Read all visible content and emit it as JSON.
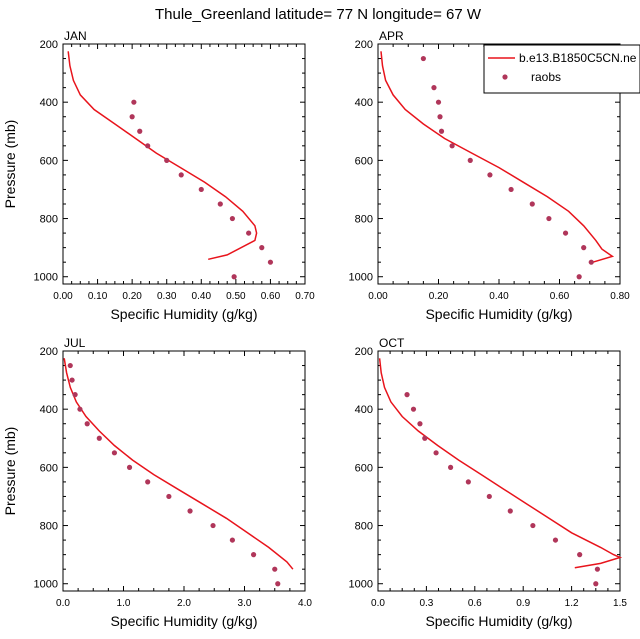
{
  "title": "Thule_Greenland  latitude= 77 N longitude= 67 W",
  "legend": {
    "model_label": "b.e13.B1850C5CN.ne",
    "obs_label": "raobs"
  },
  "colors": {
    "model": "#e8141c",
    "obs": "#b0365a",
    "axis": "#000000"
  },
  "chart_data": [
    {
      "type": "line",
      "panel": "JAN",
      "xlabel": "Specific Humidity (g/kg)",
      "ylabel": "Pressure (mb)",
      "xlim": [
        0,
        0.7
      ],
      "ylim": [
        1025,
        200
      ],
      "xticks": [
        0,
        0.1,
        0.2,
        0.3,
        0.4,
        0.5,
        0.6,
        0.7
      ],
      "xtick_labels": [
        "0.00",
        "0.10",
        "0.20",
        "0.30",
        "0.40",
        "0.50",
        "0.60",
        "0.70"
      ],
      "yticks": [
        200,
        400,
        600,
        800,
        1000
      ],
      "ytick_labels": [
        "200",
        "400",
        "600",
        "800",
        "1000"
      ],
      "model": {
        "p": [
          225,
          275,
          325,
          375,
          425,
          475,
          525,
          575,
          625,
          675,
          725,
          775,
          825,
          850,
          875,
          925,
          940
        ],
        "q": [
          0.015,
          0.02,
          0.03,
          0.05,
          0.09,
          0.15,
          0.21,
          0.27,
          0.34,
          0.41,
          0.47,
          0.52,
          0.555,
          0.56,
          0.555,
          0.475,
          0.42
        ]
      },
      "obs": {
        "p": [
          400,
          450,
          500,
          550,
          600,
          650,
          700,
          750,
          800,
          850,
          900,
          950,
          1000
        ],
        "q": [
          0.205,
          0.2,
          0.222,
          0.245,
          0.3,
          0.342,
          0.4,
          0.455,
          0.49,
          0.537,
          0.575,
          0.6,
          0.495
        ]
      }
    },
    {
      "type": "line",
      "panel": "APR",
      "xlabel": "Specific Humidity (g/kg)",
      "ylabel": "",
      "xlim": [
        0,
        0.8
      ],
      "ylim": [
        1025,
        200
      ],
      "xticks": [
        0,
        0.2,
        0.4,
        0.6,
        0.8
      ],
      "xtick_labels": [
        "0.00",
        "0.20",
        "0.40",
        "0.60",
        "0.80"
      ],
      "yticks": [
        200,
        400,
        600,
        800,
        1000
      ],
      "ytick_labels": [
        "200",
        "400",
        "600",
        "800",
        "1000"
      ],
      "model": {
        "p": [
          225,
          275,
          325,
          375,
          425,
          475,
          525,
          575,
          625,
          675,
          725,
          775,
          825,
          875,
          905,
          930,
          950
        ],
        "q": [
          0.01,
          0.015,
          0.025,
          0.05,
          0.09,
          0.15,
          0.22,
          0.31,
          0.4,
          0.48,
          0.56,
          0.63,
          0.68,
          0.72,
          0.74,
          0.775,
          0.71
        ]
      },
      "obs": {
        "p": [
          250,
          350,
          400,
          450,
          500,
          550,
          600,
          650,
          700,
          750,
          800,
          850,
          900,
          950,
          1000
        ],
        "q": [
          0.15,
          0.185,
          0.2,
          0.205,
          0.21,
          0.245,
          0.305,
          0.37,
          0.44,
          0.51,
          0.565,
          0.62,
          0.68,
          0.705,
          0.665
        ]
      }
    },
    {
      "type": "line",
      "panel": "JUL",
      "xlabel": "Specific Humidity (g/kg)",
      "ylabel": "Pressure (mb)",
      "xlim": [
        0,
        4.0
      ],
      "ylim": [
        1025,
        200
      ],
      "xticks": [
        0,
        1,
        2,
        3,
        4
      ],
      "xtick_labels": [
        "0.0",
        "1.0",
        "2.0",
        "3.0",
        "4.0"
      ],
      "yticks": [
        200,
        400,
        600,
        800,
        1000
      ],
      "ytick_labels": [
        "200",
        "400",
        "600",
        "800",
        "1000"
      ],
      "model": {
        "p": [
          225,
          275,
          325,
          375,
          425,
          475,
          525,
          575,
          625,
          675,
          725,
          775,
          825,
          875,
          925,
          950
        ],
        "q": [
          0.02,
          0.06,
          0.12,
          0.22,
          0.38,
          0.6,
          0.85,
          1.15,
          1.5,
          1.9,
          2.3,
          2.7,
          3.05,
          3.4,
          3.7,
          3.8
        ]
      },
      "obs": {
        "p": [
          250,
          300,
          350,
          400,
          450,
          500,
          550,
          600,
          650,
          700,
          750,
          800,
          850,
          900,
          950,
          1000
        ],
        "q": [
          0.12,
          0.15,
          0.2,
          0.28,
          0.4,
          0.6,
          0.85,
          1.1,
          1.4,
          1.75,
          2.1,
          2.48,
          2.8,
          3.15,
          3.5,
          3.55
        ]
      }
    },
    {
      "type": "line",
      "panel": "OCT",
      "xlabel": "Specific Humidity (g/kg)",
      "ylabel": "",
      "xlim": [
        0,
        1.5
      ],
      "ylim": [
        1025,
        200
      ],
      "xticks": [
        0,
        0.3,
        0.6,
        0.9,
        1.2,
        1.5
      ],
      "xtick_labels": [
        "0.0",
        "0.3",
        "0.6",
        "0.9",
        "1.2",
        "1.5"
      ],
      "yticks": [
        200,
        400,
        600,
        800,
        1000
      ],
      "ytick_labels": [
        "200",
        "400",
        "600",
        "800",
        "1000"
      ],
      "model": {
        "p": [
          225,
          275,
          325,
          375,
          425,
          475,
          525,
          575,
          625,
          675,
          725,
          775,
          825,
          875,
          900,
          910,
          930,
          945
        ],
        "q": [
          0.01,
          0.02,
          0.04,
          0.08,
          0.15,
          0.25,
          0.37,
          0.5,
          0.64,
          0.78,
          0.92,
          1.06,
          1.2,
          1.38,
          1.46,
          1.5,
          1.38,
          1.22
        ]
      },
      "obs": {
        "p": [
          350,
          400,
          450,
          500,
          550,
          600,
          650,
          700,
          750,
          800,
          850,
          900,
          950,
          1000
        ],
        "q": [
          0.18,
          0.22,
          0.26,
          0.29,
          0.36,
          0.45,
          0.56,
          0.69,
          0.82,
          0.96,
          1.1,
          1.25,
          1.36,
          1.35
        ]
      }
    }
  ]
}
